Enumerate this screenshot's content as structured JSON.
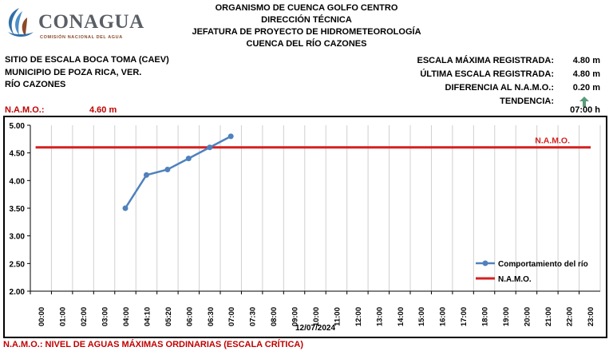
{
  "branding": {
    "logo_text": "CONAGUA",
    "logo_subtitle": "COMISIÓN NACIONAL DEL AGUA"
  },
  "header": {
    "line1": "ORGANISMO DE CUENCA GOLFO CENTRO",
    "line2": "DIRECCIÓN TÉCNICA",
    "line3": "JEFATURA DE PROYECTO DE HIDROMETEOROLOGÍA",
    "line4": "CUENCA DEL RÍO CAZONES"
  },
  "site": {
    "name": "SITIO DE ESCALA BOCA TOMA (CAEV)",
    "municipality": "MUNICIPIO DE POZA RICA, VER.",
    "river": "RÍO CAZONES"
  },
  "stats": {
    "max_label": "ESCALA MÁXIMA REGISTRADA:",
    "max_value": "4.80 m",
    "last_label": "ÚLTIMA ESCALA REGISTRADA:",
    "last_value": "4.80 m",
    "diff_label": "DIFERENCIA AL N.A.M.O.:",
    "diff_value": "0.20 m",
    "trend_label": "TENDENCIA:",
    "trend_icon": "arrow-up-icon",
    "trend_color": "#5a9a78",
    "time": "07:00 h"
  },
  "namo": {
    "label": "N.A.M.O.:",
    "value": "4.60 m",
    "color": "#d42020"
  },
  "chart_data": {
    "type": "line",
    "date_label": "12/07/2024",
    "categories": [
      "00:00",
      "01:00",
      "02:00",
      "03:00",
      "04:00",
      "04:10",
      "05:20",
      "06:00",
      "06:30",
      "07:00",
      "07:30",
      "08:00",
      "09:00",
      "10:00",
      "11:00",
      "12:00",
      "13:00",
      "14:00",
      "15:00",
      "16:00",
      "17:00",
      "18:00",
      "19:00",
      "20:00",
      "21:00",
      "22:00",
      "23:00"
    ],
    "ylim": [
      2.0,
      5.0
    ],
    "yticks": [
      "5.00",
      "4.50",
      "4.00",
      "3.50",
      "3.00",
      "2.50",
      "2.00"
    ],
    "grid": "vertical",
    "legend_position": "bottom-right",
    "series": [
      {
        "name": "Comportamiento del río",
        "color": "#4f81bd",
        "values": [
          null,
          null,
          null,
          null,
          3.5,
          4.1,
          4.2,
          4.4,
          4.6,
          4.8,
          null,
          null,
          null,
          null,
          null,
          null,
          null,
          null,
          null,
          null,
          null,
          null,
          null,
          null,
          null,
          null,
          null
        ]
      }
    ],
    "threshold": {
      "name": "N.A.M.O.",
      "value": 4.6,
      "color": "#d42020",
      "label": "N.A.M.O."
    }
  },
  "footer": {
    "text": "N.A.M.O.: NIVEL DE AGUAS MÁXIMAS ORDINARIAS (ESCALA CRÍTICA)"
  }
}
